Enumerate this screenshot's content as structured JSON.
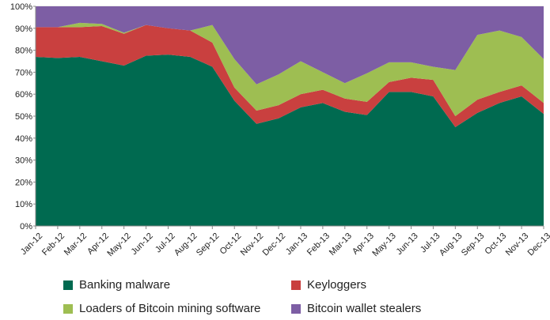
{
  "chart_data": {
    "type": "area",
    "stacked": true,
    "percent_stacked": true,
    "title": "",
    "xlabel": "",
    "ylabel": "",
    "ylim": [
      0,
      100
    ],
    "y_ticks": [
      "0%",
      "10%",
      "20%",
      "30%",
      "40%",
      "50%",
      "60%",
      "70%",
      "80%",
      "90%",
      "100%"
    ],
    "categories": [
      "Jan-12",
      "Feb-12",
      "Mar-12",
      "Apr-12",
      "May-12",
      "Jun-12",
      "Jul-12",
      "Aug-12",
      "Sep-12",
      "Oct-12",
      "Nov-12",
      "Dec-12",
      "Jan-13",
      "Feb-13",
      "Mar-13",
      "Apr-13",
      "May-13",
      "Jun-13",
      "Jul-13",
      "Aug-13",
      "Sep-13",
      "Oct-13",
      "Nov-13",
      "Dec-13"
    ],
    "series": [
      {
        "name": "Banking malware",
        "color": "#006a50",
        "values": [
          77,
          76.5,
          77,
          75,
          73,
          77.5,
          78,
          77,
          72.5,
          57,
          46.5,
          49,
          54,
          56,
          52,
          50.5,
          61,
          61,
          59,
          45,
          51.5,
          56,
          59,
          51
        ]
      },
      {
        "name": "Keyloggers",
        "color": "#c9403f",
        "values": [
          13.5,
          14,
          13.5,
          16,
          14.5,
          14,
          12,
          12,
          11,
          6,
          6,
          6,
          6,
          6,
          6,
          6,
          4.5,
          6.5,
          7.5,
          5,
          6,
          5,
          5,
          5
        ]
      },
      {
        "name": "Loaders of Bitcoin mining software",
        "color": "#9ebe52",
        "values": [
          0,
          0,
          2,
          1,
          0.5,
          0,
          0,
          0,
          8,
          13,
          12,
          14,
          15,
          8,
          7,
          13,
          9,
          7,
          6,
          21,
          29.5,
          28,
          22,
          20
        ]
      },
      {
        "name": "Bitcoin wallet stealers",
        "color": "#7d5ea4",
        "values": [
          9.5,
          9.5,
          7.5,
          8,
          12,
          8.5,
          10,
          11,
          8.5,
          24,
          35.5,
          31,
          25,
          30,
          35,
          30.5,
          25.5,
          25.5,
          27.5,
          29,
          13,
          11,
          14,
          24
        ]
      }
    ],
    "grid": "horizontal",
    "legend_position": "bottom"
  }
}
